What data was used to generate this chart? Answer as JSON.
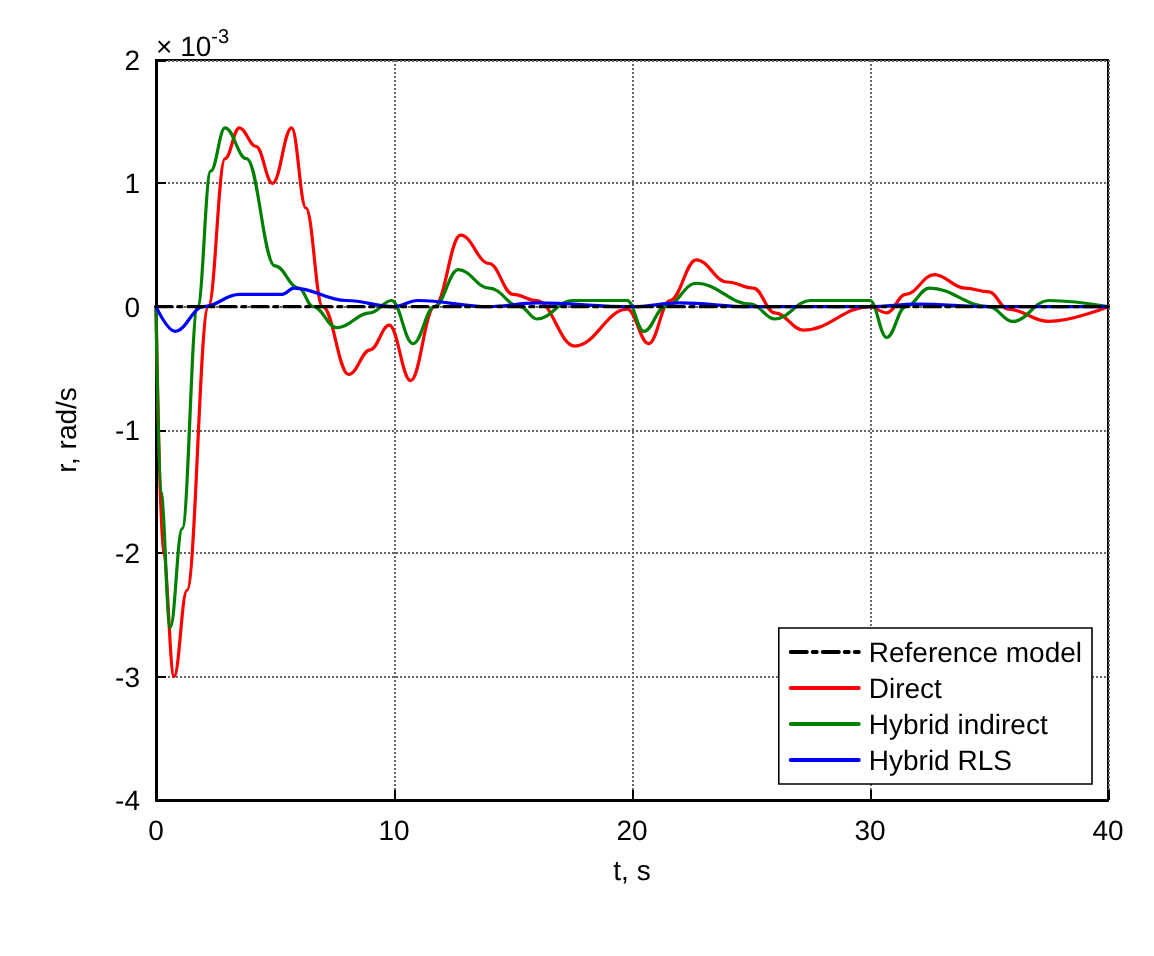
{
  "chart_data": {
    "type": "line",
    "xlabel": "t, s",
    "ylabel": "r, rad/s",
    "annotations": [
      "× 10$^{-3}$"
    ],
    "xlim": [
      0,
      40
    ],
    "xticks": [
      0,
      10,
      20,
      30,
      40
    ],
    "ylim": [
      -4,
      2
    ],
    "yticks": [
      -4,
      -3,
      -2,
      -1,
      0,
      1,
      2
    ],
    "grid": true,
    "legend": "bottom right",
    "marker": "none",
    "series": [
      {
        "name": "Reference model",
        "color": "#000000",
        "line_style": "dashdot",
        "x": [
          0,
          40
        ],
        "values": [
          0,
          0
        ]
      },
      {
        "name": "Direct",
        "color": "#ff0000",
        "x": [
          0,
          0.3,
          0.76,
          1.3,
          2.2,
          2.9,
          3.5,
          4.2,
          4.9,
          5.7,
          6.3,
          7.0,
          8.1,
          9.0,
          9.8,
          10.7,
          11.7,
          12.8,
          14,
          15,
          16,
          17.6,
          19.8,
          20.7,
          21.6,
          22.7,
          24,
          25.1,
          26,
          27.2,
          30,
          30.7,
          31.5,
          32.7,
          34,
          35,
          35.8,
          37.5,
          40
        ],
        "values": [
          0,
          -2.0,
          -3.0,
          -2.3,
          0,
          1.2,
          1.45,
          1.3,
          1.0,
          1.45,
          0.8,
          0,
          -0.55,
          -0.35,
          -0.15,
          -0.6,
          0,
          0.58,
          0.35,
          0.1,
          0.05,
          -0.32,
          -0.02,
          -0.3,
          0.05,
          0.38,
          0.2,
          0.15,
          -0.05,
          -0.19,
          0,
          -0.05,
          0.1,
          0.26,
          0.15,
          0.12,
          -0.02,
          -0.12,
          0
        ]
      },
      {
        "name": "Hybrid indirect",
        "color": "#008000",
        "x": [
          0,
          0.2,
          0.6,
          1.1,
          1.75,
          2.3,
          2.9,
          3.8,
          5.0,
          6.0,
          6.6,
          7.6,
          9.0,
          9.9,
          10.8,
          11.7,
          12.7,
          14,
          15.3,
          16,
          17.5,
          19.8,
          20.5,
          21.4,
          22.7,
          25,
          26,
          27.5,
          30,
          30.7,
          31.5,
          32.5,
          35,
          36,
          37.5,
          40
        ],
        "values": [
          0,
          -1.5,
          -2.6,
          -1.8,
          0,
          1.1,
          1.45,
          1.2,
          0.33,
          0.15,
          0,
          -0.17,
          -0.05,
          0.05,
          -0.3,
          0,
          0.3,
          0.15,
          0,
          -0.1,
          0.05,
          0.05,
          -0.2,
          0,
          0.19,
          0.02,
          -0.1,
          0.05,
          0.05,
          -0.25,
          0,
          0.15,
          0,
          -0.12,
          0.05,
          0
        ]
      },
      {
        "name": "Hybrid RLS",
        "color": "#0000ff",
        "x": [
          0,
          0.8,
          2,
          3.5,
          5.3,
          5.8,
          8,
          10,
          11,
          14,
          16,
          20,
          22,
          25,
          30,
          32,
          35,
          40
        ],
        "values": [
          0,
          -0.2,
          0,
          0.1,
          0.1,
          0.15,
          0.05,
          0,
          0.05,
          0,
          0.03,
          0,
          0.03,
          0,
          0,
          0.02,
          0,
          0
        ]
      }
    ]
  }
}
